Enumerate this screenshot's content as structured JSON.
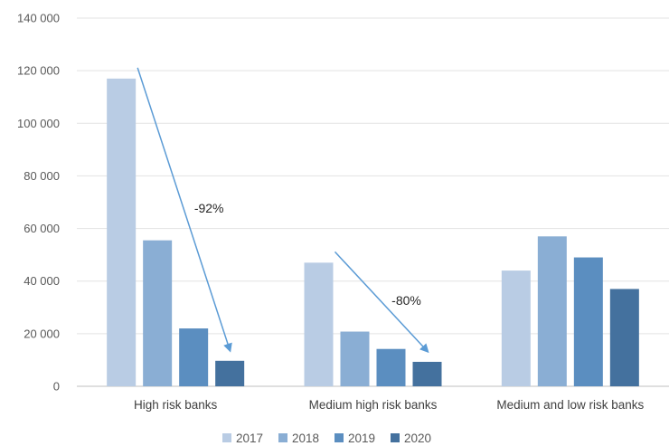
{
  "chart_data": {
    "type": "bar",
    "categories": [
      "High risk banks",
      "Medium high risk banks",
      "Medium and low risk banks"
    ],
    "series": [
      {
        "name": "2017",
        "values": [
          117000,
          47000,
          44000
        ],
        "color": "#b9cce4"
      },
      {
        "name": "2018",
        "values": [
          55500,
          20800,
          57000
        ],
        "color": "#8aaed4"
      },
      {
        "name": "2019",
        "values": [
          22000,
          14200,
          49000
        ],
        "color": "#5b8ec0"
      },
      {
        "name": "2020",
        "values": [
          9700,
          9300,
          37000
        ],
        "color": "#44719e"
      }
    ],
    "y_ticks": [
      "0",
      "20 000",
      "40 000",
      "60 000",
      "80 000",
      "100 000",
      "120 000",
      "140 000"
    ],
    "ylim": [
      0,
      140000
    ],
    "grid": true,
    "legend_position": "bottom",
    "annotations": [
      {
        "text": "-92%",
        "category": "High risk banks",
        "arrow_color": "#5b9bd5"
      },
      {
        "text": "-80%",
        "category": "Medium high risk banks",
        "arrow_color": "#5b9bd5"
      }
    ]
  }
}
